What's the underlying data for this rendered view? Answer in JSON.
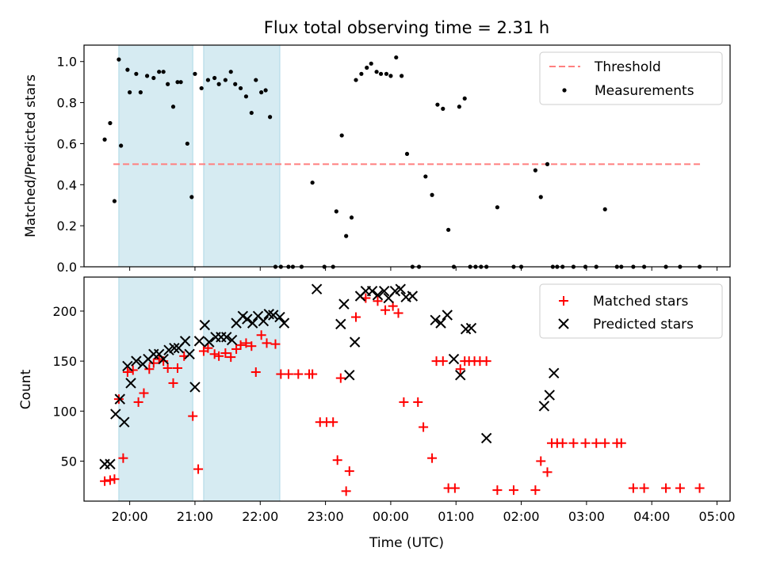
{
  "chart_data": [
    {
      "type": "scatter",
      "title": "Flux total observing time = 2.31 h",
      "ylabel": "Matched/Predicted stars",
      "xlabel": "",
      "ylim": [
        0,
        1.08
      ],
      "xlim_hours": [
        19.3,
        29.2
      ],
      "grid": false,
      "legend_position": "top-right",
      "y_ticks": [
        0.0,
        0.2,
        0.4,
        0.6,
        0.8,
        1.0
      ],
      "y_tick_labels": [
        "0.0",
        "0.2",
        "0.4",
        "0.6",
        "0.8",
        "1.0"
      ],
      "shaded_intervals": [
        {
          "start": "19:50",
          "end": "20:58"
        },
        {
          "start": "21:08",
          "end": "22:18"
        }
      ],
      "series": [
        {
          "name": "Threshold",
          "type": "line",
          "style": "dashed",
          "color": "#ff7f7f",
          "x": [
            "19:45",
            "28:45"
          ],
          "y": [
            0.5,
            0.5
          ]
        },
        {
          "name": "Measurements",
          "type": "scatter",
          "color": "#000000",
          "x": [
            "19:37",
            "19:42",
            "19:46",
            "19:50",
            "19:52",
            "19:58",
            "20:00",
            "20:06",
            "20:10",
            "20:16",
            "20:22",
            "20:27",
            "20:31",
            "20:35",
            "20:40",
            "20:44",
            "20:47",
            "20:53",
            "20:57",
            "21:00",
            "21:06",
            "21:12",
            "21:18",
            "21:22",
            "21:28",
            "21:33",
            "21:37",
            "21:42",
            "21:47",
            "21:52",
            "21:56",
            "22:01",
            "22:05",
            "22:09",
            "22:14",
            "22:19",
            "22:26",
            "22:30",
            "22:38",
            "22:48",
            "22:59",
            "23:07",
            "23:10",
            "23:15",
            "23:19",
            "23:24",
            "23:28",
            "23:33",
            "23:38",
            "23:42",
            "23:47",
            "23:51",
            "23:56",
            "24:00",
            "24:05",
            "24:10",
            "24:15",
            "24:20",
            "24:26",
            "24:32",
            "24:38",
            "24:43",
            "24:48",
            "24:53",
            "24:58",
            "25:03",
            "25:08",
            "25:13",
            "25:18",
            "25:23",
            "25:28",
            "25:38",
            "25:53",
            "26:00",
            "26:13",
            "26:18",
            "26:24",
            "26:29",
            "26:33",
            "26:38",
            "26:48",
            "26:59",
            "27:09",
            "27:17",
            "27:28",
            "27:32",
            "27:43",
            "27:53",
            "28:13",
            "28:26",
            "28:44"
          ],
          "y": [
            0.62,
            0.7,
            0.32,
            1.01,
            0.59,
            0.96,
            0.85,
            0.94,
            0.85,
            0.93,
            0.92,
            0.95,
            0.95,
            0.89,
            0.78,
            0.9,
            0.9,
            0.6,
            0.34,
            0.94,
            0.87,
            0.91,
            0.92,
            0.89,
            0.91,
            0.95,
            0.89,
            0.87,
            0.83,
            0.75,
            0.91,
            0.85,
            0.86,
            0.73,
            0.0,
            0.0,
            0.0,
            0.0,
            0.0,
            0.41,
            0.0,
            0.0,
            0.27,
            0.64,
            0.15,
            0.24,
            0.91,
            0.94,
            0.97,
            0.99,
            0.95,
            0.94,
            0.94,
            0.93,
            1.02,
            0.93,
            0.55,
            0.0,
            0.0,
            0.44,
            0.35,
            0.79,
            0.77,
            0.18,
            0.0,
            0.78,
            0.82,
            0.0,
            0.0,
            0.0,
            0.0,
            0.29,
            0.0,
            0.0,
            0.47,
            0.34,
            0.5,
            0.0,
            0.0,
            0.0,
            0.0,
            0.0,
            0.0,
            0.28,
            0.0,
            0.0,
            0.0,
            0.0,
            0.0,
            0.0,
            0.0
          ]
        }
      ]
    },
    {
      "type": "scatter",
      "title": "",
      "ylabel": "Count",
      "xlabel": "Time (UTC)",
      "ylim": [
        10,
        234
      ],
      "xlim_hours": [
        19.3,
        29.2
      ],
      "grid": false,
      "legend_position": "top-right",
      "y_ticks": [
        50,
        100,
        150,
        200
      ],
      "y_tick_labels": [
        "50",
        "100",
        "150",
        "200"
      ],
      "x_ticks_hours": [
        20,
        21,
        22,
        23,
        24,
        25,
        26,
        27,
        28,
        29
      ],
      "x_tick_labels": [
        "20:00",
        "21:00",
        "22:00",
        "23:00",
        "00:00",
        "01:00",
        "02:00",
        "03:00",
        "04:00",
        "05:00"
      ],
      "shaded_intervals": [
        {
          "start": "19:50",
          "end": "20:58"
        },
        {
          "start": "21:08",
          "end": "22:18"
        }
      ],
      "series": [
        {
          "name": "Matched stars",
          "marker": "plus",
          "color": "#ff0000",
          "x": [
            "19:37",
            "19:42",
            "19:46",
            "19:50",
            "19:54",
            "19:58",
            "20:03",
            "20:08",
            "20:13",
            "20:18",
            "20:22",
            "20:27",
            "20:31",
            "20:35",
            "20:40",
            "20:44",
            "20:50",
            "20:58",
            "21:03",
            "21:08",
            "21:12",
            "21:18",
            "21:22",
            "21:28",
            "21:33",
            "21:38",
            "21:42",
            "21:47",
            "21:52",
            "21:56",
            "22:01",
            "22:06",
            "22:14",
            "22:19",
            "22:26",
            "22:35",
            "22:45",
            "22:48",
            "22:55",
            "23:01",
            "23:07",
            "23:11",
            "23:14",
            "23:19",
            "23:22",
            "23:28",
            "23:37",
            "23:48",
            "23:55",
            "24:02",
            "24:07",
            "24:12",
            "24:25",
            "24:30",
            "24:38",
            "24:42",
            "24:48",
            "24:53",
            "24:59",
            "25:04",
            "25:08",
            "25:12",
            "25:17",
            "25:22",
            "25:28",
            "25:38",
            "25:53",
            "26:13",
            "26:18",
            "26:24",
            "26:28",
            "26:33",
            "26:38",
            "26:48",
            "26:59",
            "27:09",
            "27:17",
            "27:28",
            "27:32",
            "27:43",
            "27:53",
            "28:13",
            "28:26",
            "28:44"
          ],
          "y": [
            30,
            31,
            32,
            112,
            53,
            139,
            141,
            109,
            118,
            142,
            148,
            152,
            150,
            143,
            128,
            143,
            155,
            95,
            42,
            160,
            163,
            157,
            155,
            158,
            154,
            162,
            166,
            168,
            165,
            139,
            176,
            168,
            167,
            137,
            137,
            137,
            137,
            137,
            89,
            89,
            89,
            51,
            133,
            20,
            40,
            194,
            213,
            210,
            201,
            205,
            198,
            109,
            109,
            84,
            53,
            150,
            150,
            23,
            23,
            142,
            150,
            150,
            150,
            150,
            150,
            21,
            21,
            21,
            50,
            39,
            68,
            68,
            68,
            68,
            68,
            68,
            68,
            68,
            68,
            23,
            23,
            23,
            23,
            23
          ],
          "y_note_unused": ""
        },
        {
          "name": "Predicted stars",
          "marker": "x",
          "color": "#000000",
          "x": [
            "19:37",
            "19:42",
            "19:47",
            "19:51",
            "19:55",
            "19:58",
            "20:01",
            "20:06",
            "20:12",
            "20:17",
            "20:22",
            "20:27",
            "20:31",
            "20:36",
            "20:41",
            "20:45",
            "20:51",
            "20:55",
            "21:00",
            "21:04",
            "21:09",
            "21:13",
            "21:19",
            "21:24",
            "21:29",
            "21:34",
            "21:38",
            "21:44",
            "21:48",
            "21:53",
            "21:58",
            "22:03",
            "22:08",
            "22:12",
            "22:18",
            "22:22",
            "22:52",
            "23:14",
            "23:17",
            "23:22",
            "23:27",
            "23:32",
            "23:37",
            "23:43",
            "23:48",
            "23:54",
            "23:58",
            "24:04",
            "24:09",
            "24:14",
            "24:20",
            "24:41",
            "24:46",
            "24:52",
            "24:58",
            "25:04",
            "25:09",
            "25:14",
            "25:28",
            "26:21",
            "26:26",
            "26:30"
          ],
          "y": [
            47,
            47,
            97,
            112,
            89,
            145,
            128,
            150,
            147,
            152,
            157,
            157,
            152,
            161,
            163,
            163,
            170,
            157,
            124,
            170,
            186,
            169,
            174,
            174,
            174,
            171,
            188,
            195,
            192,
            188,
            195,
            190,
            197,
            196,
            194,
            188,
            222,
            187,
            207,
            136,
            169,
            215,
            220,
            220,
            216,
            220,
            213,
            220,
            222,
            214,
            215,
            191,
            188,
            196,
            152,
            136,
            182,
            183,
            73,
            105,
            116,
            138
          ],
          "y_note_unused": ""
        }
      ]
    }
  ]
}
